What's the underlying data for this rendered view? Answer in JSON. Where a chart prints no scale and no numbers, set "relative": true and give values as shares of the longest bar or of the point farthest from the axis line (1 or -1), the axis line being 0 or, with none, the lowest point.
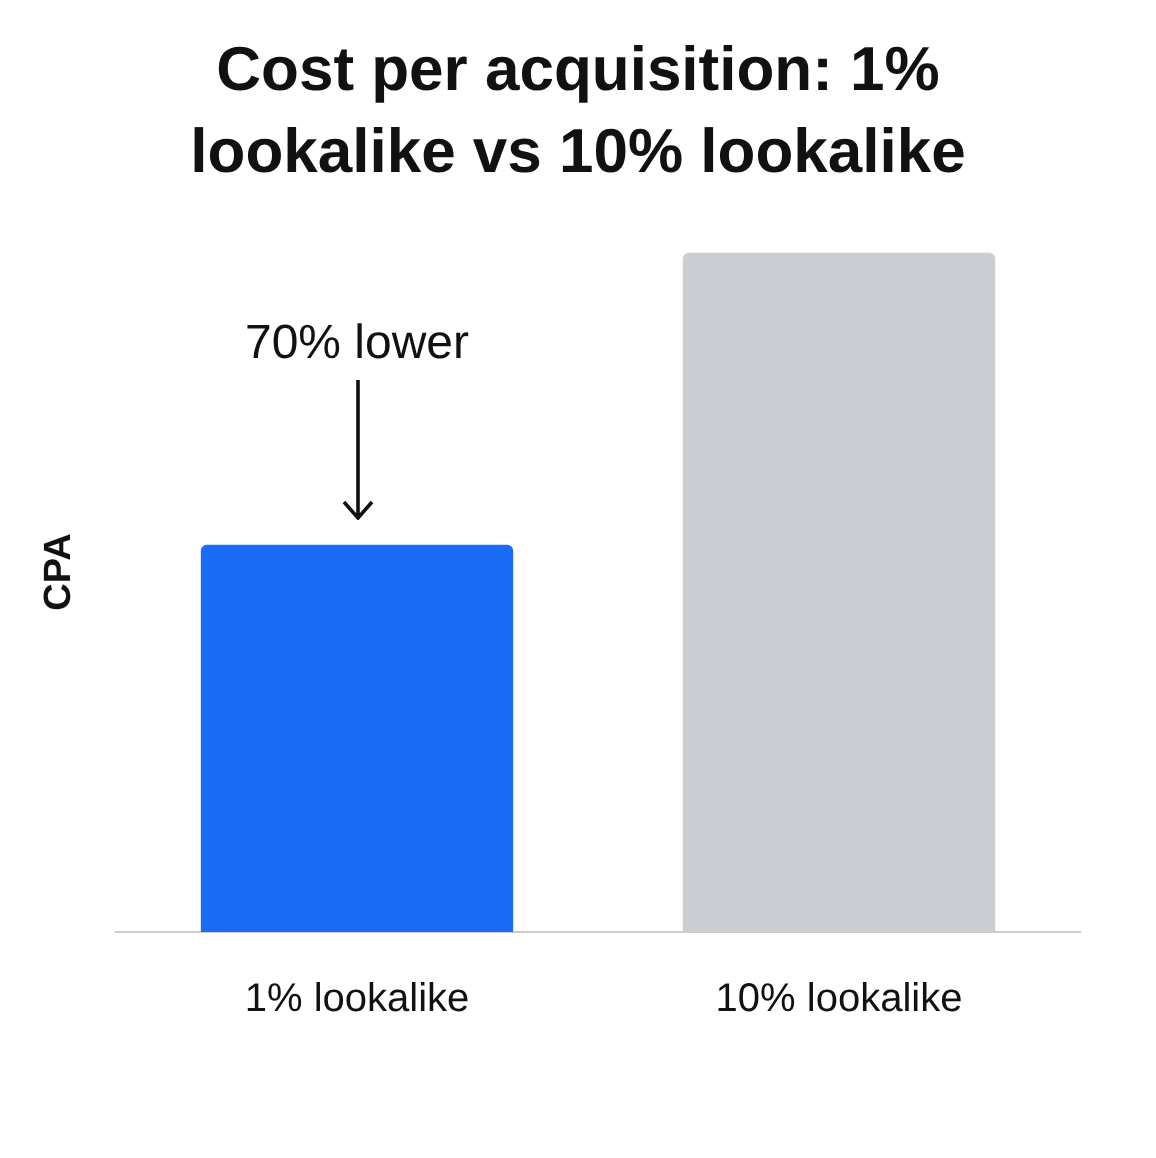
{
  "chart_data": {
    "type": "bar",
    "title": "Cost per acquisition: 1% lookalike vs 10% lookalike",
    "ylabel": "CPA",
    "relative": true,
    "categories": [
      "1% lookalike",
      "10% lookalike"
    ],
    "values": [
      0.57,
      1
    ],
    "colors": [
      "#1a6cf5",
      "#cbcdd2"
    ],
    "annotations": [
      "70% lower"
    ],
    "grid": false,
    "legend": false
  }
}
